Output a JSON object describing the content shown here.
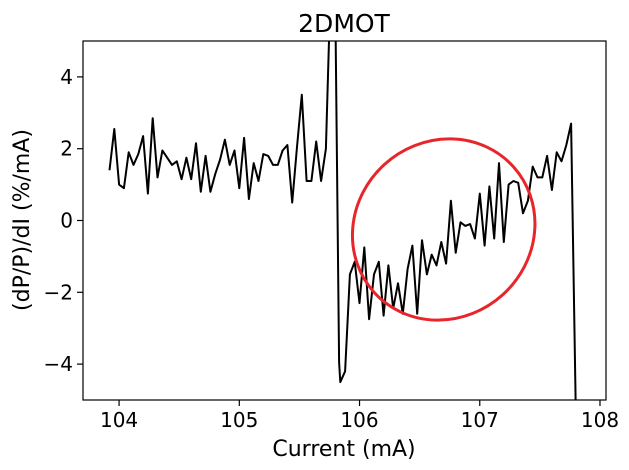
{
  "chart_data": {
    "type": "line",
    "title": "2DMOT",
    "xlabel": "Current (mA)",
    "ylabel": "(dP/P)/dI (%/mA)",
    "xlim": [
      103.7,
      108.05
    ],
    "ylim": [
      -5,
      5
    ],
    "grid": false,
    "x_ticks": [
      104,
      105,
      106,
      107,
      108
    ],
    "y_ticks": [
      -4,
      -2,
      0,
      2,
      4
    ],
    "x_tick_labels": [
      "104",
      "105",
      "106",
      "107",
      "108"
    ],
    "y_tick_labels": [
      "−4",
      "−2",
      "0",
      "2",
      "4"
    ],
    "series": [
      {
        "color": "#000000",
        "x": [
          103.92,
          103.96,
          104.0,
          104.04,
          104.08,
          104.12,
          104.16,
          104.2,
          104.24,
          104.28,
          104.32,
          104.36,
          104.4,
          104.44,
          104.48,
          104.52,
          104.56,
          104.6,
          104.64,
          104.68,
          104.72,
          104.76,
          104.8,
          104.84,
          104.88,
          104.92,
          104.96,
          105.0,
          105.04,
          105.08,
          105.12,
          105.16,
          105.2,
          105.24,
          105.28,
          105.32,
          105.36,
          105.4,
          105.44,
          105.48,
          105.52,
          105.56,
          105.6,
          105.64,
          105.68,
          105.72,
          105.75,
          105.76,
          105.8,
          105.83,
          105.84,
          105.88,
          105.92,
          105.96,
          106.0,
          106.04,
          106.08,
          106.12,
          106.16,
          106.2,
          106.24,
          106.28,
          106.32,
          106.36,
          106.4,
          106.44,
          106.48,
          106.52,
          106.56,
          106.6,
          106.64,
          106.68,
          106.72,
          106.76,
          106.8,
          106.84,
          106.88,
          106.92,
          106.96,
          107.0,
          107.04,
          107.08,
          107.12,
          107.16,
          107.2,
          107.24,
          107.28,
          107.32,
          107.36,
          107.4,
          107.44,
          107.48,
          107.52,
          107.56,
          107.6,
          107.64,
          107.68,
          107.72,
          107.76,
          107.8,
          107.82
        ],
        "y": [
          1.4,
          2.55,
          1.0,
          0.9,
          1.9,
          1.55,
          1.85,
          2.35,
          0.75,
          2.85,
          1.2,
          1.95,
          1.75,
          1.55,
          1.65,
          1.15,
          1.75,
          1.15,
          2.15,
          0.8,
          1.8,
          0.8,
          1.3,
          1.7,
          2.25,
          1.55,
          1.95,
          0.9,
          2.3,
          0.6,
          1.6,
          1.1,
          1.85,
          1.8,
          1.55,
          1.55,
          1.95,
          2.1,
          0.5,
          2.05,
          3.5,
          1.1,
          1.1,
          2.2,
          1.1,
          2.0,
          5.5,
          5.5,
          5.5,
          -3.95,
          -4.5,
          -4.2,
          -1.5,
          -1.15,
          -2.3,
          -0.75,
          -2.75,
          -1.5,
          -1.15,
          -2.65,
          -1.25,
          -2.45,
          -1.75,
          -2.6,
          -1.35,
          -0.7,
          -2.6,
          -0.55,
          -1.5,
          -0.95,
          -1.25,
          -0.6,
          -1.2,
          0.55,
          -0.9,
          -0.05,
          -0.15,
          -0.1,
          -0.5,
          0.75,
          -0.7,
          0.95,
          -0.5,
          1.6,
          -0.6,
          1.0,
          1.1,
          1.05,
          0.2,
          0.55,
          1.5,
          1.2,
          1.2,
          1.8,
          0.85,
          1.9,
          1.65,
          2.1,
          2.7,
          -5.5,
          -5.5
        ]
      }
    ],
    "annotations": [
      {
        "shape": "ellipse",
        "color": "#e8252b",
        "center": [
          106.7,
          -0.25
        ],
        "radius_x": 0.78,
        "radius_y": 2.45,
        "rotation_deg": -42
      }
    ]
  }
}
